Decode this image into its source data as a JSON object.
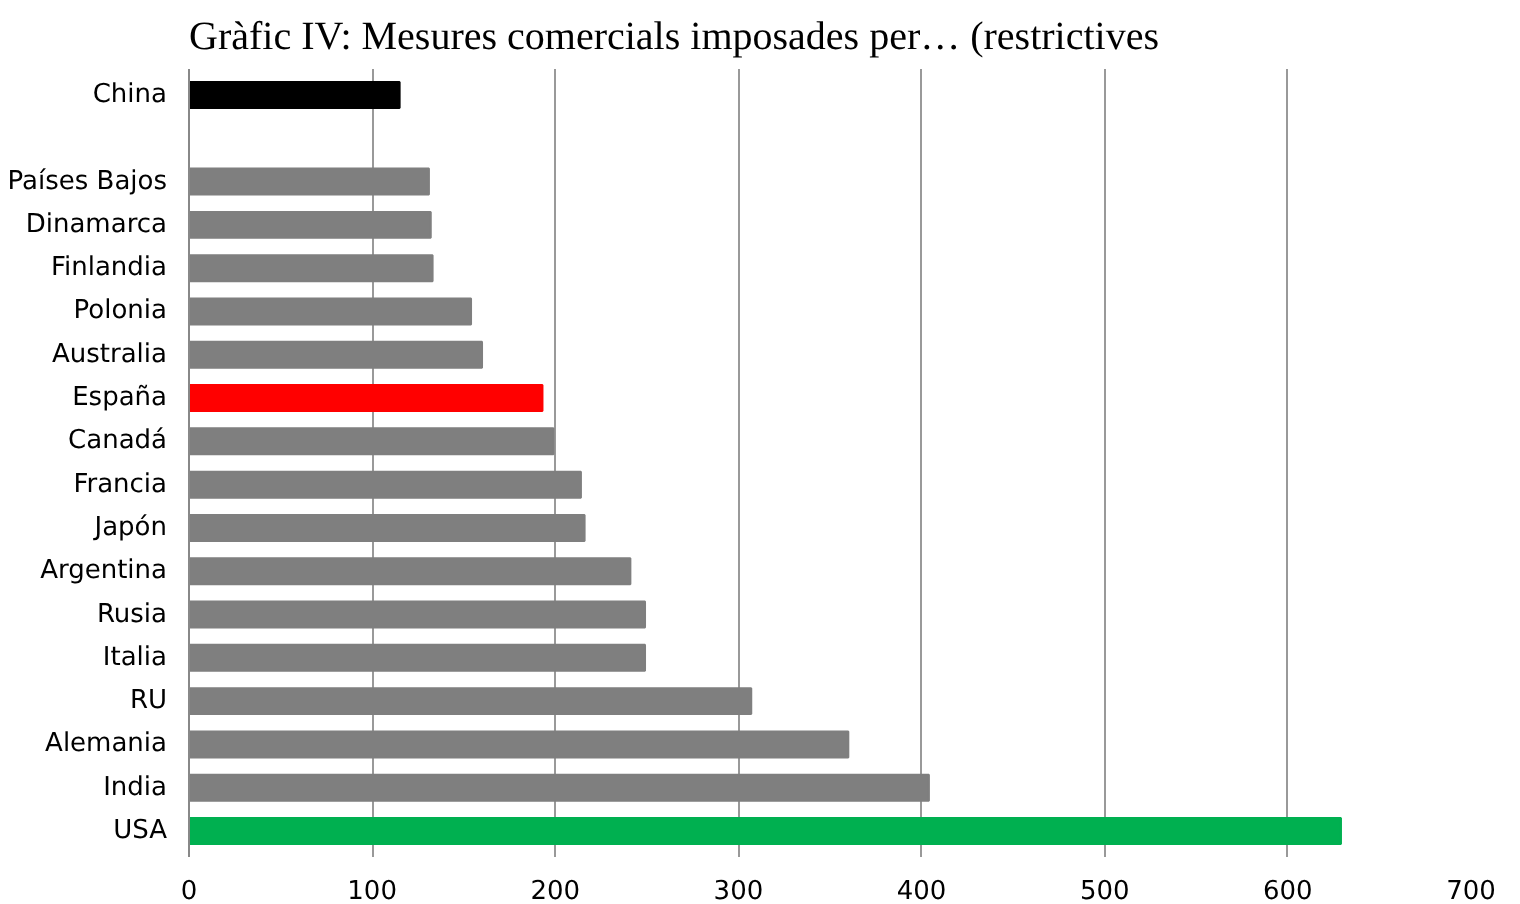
{
  "chart_data": {
    "type": "bar",
    "orientation": "horizontal",
    "title": "Gràfic IV:  Mesures comercials imposades per… (restrictives",
    "categories": [
      "China",
      null,
      "Países Bajos",
      "Dinamarca",
      "Finlandia",
      "Polonia",
      "Australia",
      "España",
      "Canadá",
      "Francia",
      "Japón",
      "Argentina",
      "Rusia",
      "Italia",
      "RU",
      "Alemania",
      "India",
      "USA"
    ],
    "values": [
      115,
      null,
      131,
      132,
      133,
      154,
      160,
      193,
      199,
      214,
      216,
      241,
      249,
      249,
      307,
      360,
      404,
      629
    ],
    "colors": [
      "#000000",
      "#7f7f7f",
      "#7f7f7f",
      "#7f7f7f",
      "#7f7f7f",
      "#7f7f7f",
      "#7f7f7f",
      "#ff0000",
      "#7f7f7f",
      "#7f7f7f",
      "#7f7f7f",
      "#7f7f7f",
      "#7f7f7f",
      "#7f7f7f",
      "#7f7f7f",
      "#7f7f7f",
      "#7f7f7f",
      "#00b050"
    ],
    "xlim": [
      0,
      700
    ],
    "xticks": [
      0,
      100,
      200,
      300,
      400,
      500,
      600,
      700
    ],
    "grid": "x"
  }
}
